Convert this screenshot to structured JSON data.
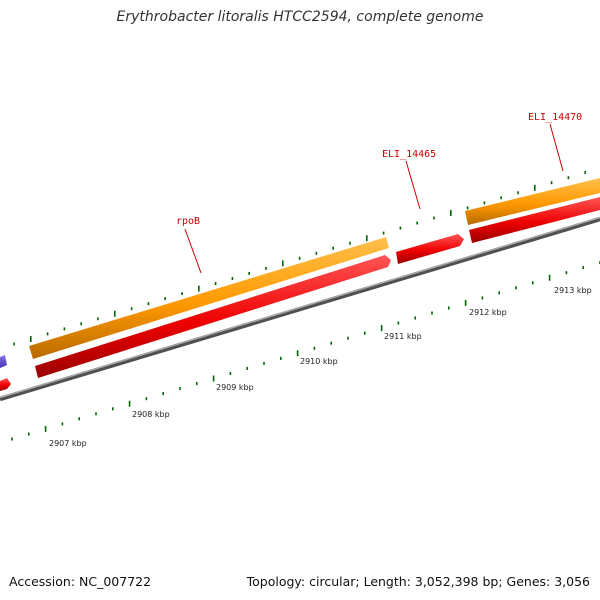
{
  "title": "Erythrobacter litoralis HTCC2594, complete genome",
  "footer": {
    "accession": "Accession: NC_007722",
    "stats": "Topology: circular; Length: 3,052,398 bp; Genes: 3,056"
  },
  "scale_labels": [
    "2907 kbp",
    "2908 kbp",
    "2909 kbp",
    "2910 kbp",
    "2911 kbp",
    "2912 kbp",
    "2913 kbp"
  ],
  "gene_labels": [
    "rpoB",
    "ELI_14465",
    "ELI_14470"
  ],
  "colors": {
    "forward_gene": "#ff9900",
    "reverse_gene": "#ee0000",
    "other_feature": "#6655cc",
    "backbone": "#808080",
    "tick": "#006600",
    "gene_label": "#cc0000",
    "scale_label": "#222222"
  }
}
